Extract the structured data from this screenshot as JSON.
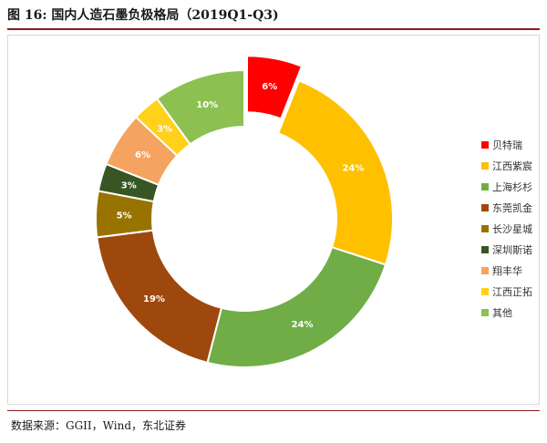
{
  "figure": {
    "title": "图  16:  国内人造石墨负极格局（2019Q1-Q3)",
    "source": "数据来源：GGII，Wind，东北证券"
  },
  "chart_data": {
    "type": "pie",
    "title": "",
    "legend_position": "right",
    "slices": [
      {
        "name": "贝特瑞",
        "value": 6,
        "label": "6%",
        "color": "#ff0000",
        "exploded": true
      },
      {
        "name": "江西紫宸",
        "value": 24,
        "label": "24%",
        "color": "#ffc000",
        "exploded": false
      },
      {
        "name": "上海杉杉",
        "value": 24,
        "label": "24%",
        "color": "#70ad47",
        "exploded": false
      },
      {
        "name": "东莞凯金",
        "value": 19,
        "label": "19%",
        "color": "#9e480e",
        "exploded": false
      },
      {
        "name": "长沙星城",
        "value": 5,
        "label": "5%",
        "color": "#997300",
        "exploded": false
      },
      {
        "name": "深圳斯诺",
        "value": 3,
        "label": "3%",
        "color": "#375623",
        "exploded": false
      },
      {
        "name": "翔丰华",
        "value": 6,
        "label": "6%",
        "color": "#f4a460",
        "exploded": false
      },
      {
        "name": "江西正拓",
        "value": 3,
        "label": "3%",
        "color": "#ffd11a",
        "exploded": false
      },
      {
        "name": "其他",
        "value": 10,
        "label": "10%",
        "color": "#8cc152",
        "exploded": false
      }
    ]
  }
}
